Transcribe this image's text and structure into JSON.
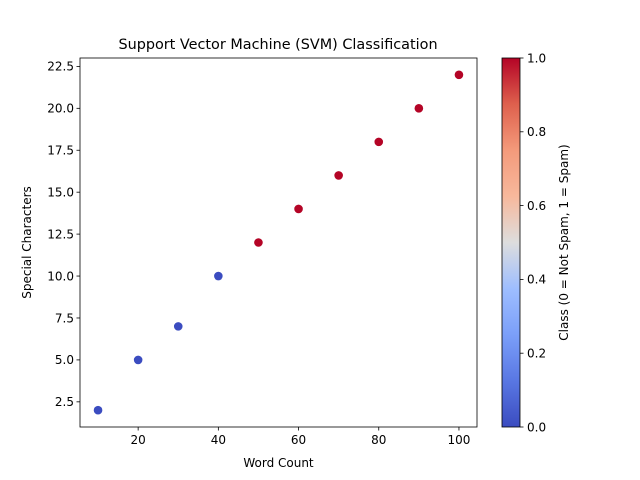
{
  "chart_data": {
    "type": "scatter",
    "title": "Support Vector Machine (SVM) Classification",
    "xlabel": "Word Count",
    "ylabel": "Special Characters",
    "xlim": [
      5.5,
      104.5
    ],
    "ylim": [
      1.0,
      23.0
    ],
    "xticks": [
      20,
      40,
      60,
      80,
      100
    ],
    "yticks": [
      2.5,
      5.0,
      7.5,
      10.0,
      12.5,
      15.0,
      17.5,
      20.0,
      22.5
    ],
    "points": [
      {
        "x": 10,
        "y": 2,
        "class": 0
      },
      {
        "x": 20,
        "y": 5,
        "class": 0
      },
      {
        "x": 30,
        "y": 7,
        "class": 0
      },
      {
        "x": 40,
        "y": 10,
        "class": 0
      },
      {
        "x": 50,
        "y": 12,
        "class": 1
      },
      {
        "x": 60,
        "y": 14,
        "class": 1
      },
      {
        "x": 70,
        "y": 16,
        "class": 1
      },
      {
        "x": 80,
        "y": 18,
        "class": 1
      },
      {
        "x": 90,
        "y": 20,
        "class": 1
      },
      {
        "x": 100,
        "y": 22,
        "class": 1
      }
    ],
    "colormap": "coolwarm",
    "class_colors": {
      "0": "#3b4cc0",
      "1": "#b40426"
    },
    "colorbar": {
      "label": "Class (0 = Not Spam, 1 = Spam)",
      "range": [
        0.0,
        1.0
      ],
      "ticks": [
        0.0,
        0.2,
        0.4,
        0.6,
        0.8,
        1.0
      ]
    },
    "grid": false,
    "legend": "none"
  }
}
